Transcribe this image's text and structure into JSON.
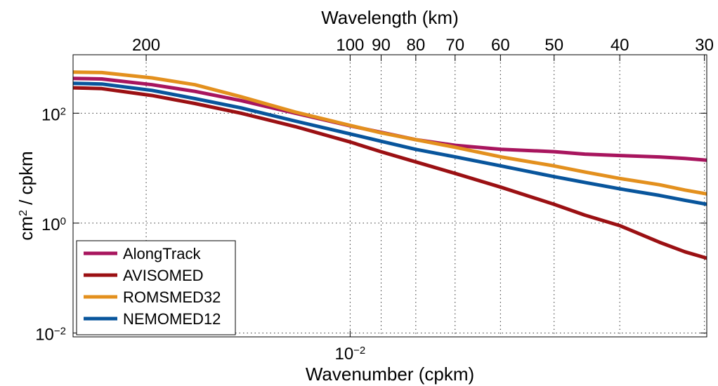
{
  "chart_data": {
    "type": "line",
    "xscale": "log",
    "yscale": "log",
    "xlabel": "Wavenumber (cpkm)",
    "ylabel": "cm² / cpkm",
    "ylabel_parts": {
      "base": "cm",
      "sup": "2",
      "rest": " / cpkm"
    },
    "top_axis_label": "Wavelength (km)",
    "xlim": [
      0.0039,
      0.0336
    ],
    "ylim": [
      0.0085,
      1160
    ],
    "x_ticks": [
      {
        "value": 0.01,
        "base": "10",
        "exp": "−2"
      }
    ],
    "y_ticks": [
      {
        "value": 0.01,
        "base": "10",
        "exp": "−2"
      },
      {
        "value": 1,
        "base": "10",
        "exp": "0"
      },
      {
        "value": 100,
        "base": "10",
        "exp": "2"
      }
    ],
    "top_ticks": [
      {
        "km": 200,
        "label": "200"
      },
      {
        "km": 100,
        "label": "100"
      },
      {
        "km": 90,
        "label": "90"
      },
      {
        "km": 80,
        "label": "80"
      },
      {
        "km": 70,
        "label": "70"
      },
      {
        "km": 60,
        "label": "60"
      },
      {
        "km": 50,
        "label": "50"
      },
      {
        "km": 40,
        "label": "40"
      },
      {
        "km": 30,
        "label": "30"
      }
    ],
    "grid": true,
    "legend_position": "bottom-left",
    "series": [
      {
        "name": "AlongTrack",
        "color": "#a8155e",
        "x": [
          0.0039,
          0.0043,
          0.0051,
          0.0059,
          0.0069,
          0.0083,
          0.01,
          0.0111,
          0.0125,
          0.0143,
          0.0167,
          0.02,
          0.0222,
          0.025,
          0.0286,
          0.0312,
          0.0336
        ],
        "y": [
          430,
          420,
          330,
          250,
          170,
          100,
          59,
          45,
          33,
          26,
          22,
          20,
          18,
          17,
          16,
          15,
          14
        ]
      },
      {
        "name": "AVISOMED",
        "color": "#9b1013",
        "x": [
          0.0039,
          0.0043,
          0.0051,
          0.0059,
          0.0069,
          0.0083,
          0.01,
          0.0111,
          0.0125,
          0.0143,
          0.0167,
          0.02,
          0.0222,
          0.025,
          0.0286,
          0.0312,
          0.0336
        ],
        "y": [
          290,
          280,
          210,
          150,
          100,
          57,
          30,
          20,
          13,
          8,
          4.5,
          2.2,
          1.4,
          0.9,
          0.45,
          0.3,
          0.23
        ]
      },
      {
        "name": "ROMSMED32",
        "color": "#e3901e",
        "x": [
          0.0039,
          0.0043,
          0.0051,
          0.0059,
          0.0069,
          0.0083,
          0.01,
          0.0111,
          0.0125,
          0.0143,
          0.0167,
          0.02,
          0.0222,
          0.025,
          0.0286,
          0.0312,
          0.0336
        ],
        "y": [
          560,
          550,
          440,
          330,
          200,
          105,
          60,
          44,
          33,
          24,
          16,
          11,
          8.5,
          6.5,
          5,
          4,
          3.4
        ]
      },
      {
        "name": "NEMOMED12",
        "color": "#08559c",
        "x": [
          0.0039,
          0.0043,
          0.0051,
          0.0059,
          0.0069,
          0.0083,
          0.01,
          0.0111,
          0.0125,
          0.0143,
          0.0167,
          0.02,
          0.0222,
          0.025,
          0.0286,
          0.0312,
          0.0336
        ],
        "y": [
          350,
          340,
          260,
          185,
          125,
          72,
          42,
          31,
          22,
          16,
          11,
          7,
          5.5,
          4.2,
          3.2,
          2.6,
          2.2
        ]
      }
    ]
  }
}
